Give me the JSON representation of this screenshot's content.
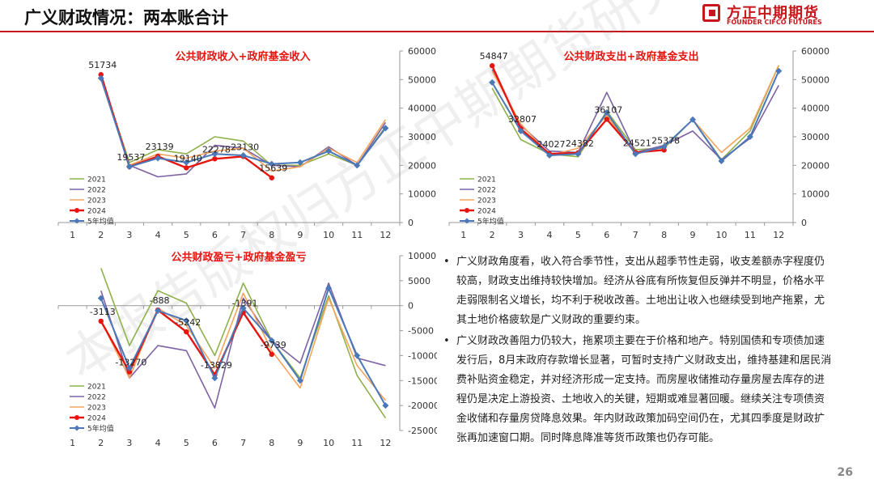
{
  "page": {
    "title": "广义财政情况：两本账合计",
    "page_number": "26",
    "watermark": "本报告版权归方正中期期货研究院所有"
  },
  "logo": {
    "cn": "方正中期期货",
    "en": "FOUNDER CIFCO FUTURES"
  },
  "colors": {
    "accent": "#c8161d",
    "s2021": "#8fb04a",
    "s2022": "#7d62a3",
    "s2023": "#f5a35a",
    "s2024": "#e8150f",
    "savg": "#4a78b8"
  },
  "chart_data": [
    {
      "type": "line",
      "title": "公共财政收入+政府基金收入",
      "x": [
        1,
        2,
        3,
        4,
        5,
        6,
        7,
        8,
        9,
        10,
        11,
        12
      ],
      "ylim": [
        0,
        60000
      ],
      "yticks": [
        0,
        10000,
        20000,
        30000,
        40000,
        50000,
        60000
      ],
      "series": [
        {
          "name": "2021",
          "values": [
            null,
            51000,
            21000,
            25500,
            24000,
            30000,
            28500,
            20000,
            20000,
            24000,
            20000,
            33500
          ]
        },
        {
          "name": "2022",
          "values": [
            null,
            50500,
            20000,
            16000,
            17000,
            27000,
            26000,
            20000,
            19500,
            26500,
            20000,
            35000
          ]
        },
        {
          "name": "2023",
          "values": [
            null,
            50000,
            20000,
            24000,
            22500,
            25000,
            26000,
            18000,
            19500,
            26000,
            21000,
            36000
          ]
        },
        {
          "name": "2024",
          "values": [
            null,
            51734,
            19537,
            23139,
            19140,
            22278,
            23130,
            15639,
            null,
            null,
            null,
            null
          ]
        },
        {
          "name": "5年均值",
          "values": [
            null,
            50500,
            19537,
            22500,
            21000,
            24000,
            23500,
            20500,
            21000,
            25000,
            20000,
            33000
          ]
        }
      ],
      "labels": [
        {
          "x": 2,
          "value": "51734"
        },
        {
          "x": 3,
          "value": "19537"
        },
        {
          "x": 4,
          "value": "23139"
        },
        {
          "x": 5,
          "value": "19140"
        },
        {
          "x": 6,
          "value": "22278"
        },
        {
          "x": 7,
          "value": "23130"
        },
        {
          "x": 8,
          "value": "15639"
        }
      ]
    },
    {
      "type": "line",
      "title": "公共财政支出+政府基金支出",
      "x": [
        1,
        2,
        3,
        4,
        5,
        6,
        7,
        8,
        9,
        10,
        11,
        12
      ],
      "ylim": [
        0,
        60000
      ],
      "yticks": [
        0,
        10000,
        20000,
        30000,
        40000,
        50000,
        60000
      ],
      "series": [
        {
          "name": "2021",
          "values": [
            null,
            47000,
            29000,
            24000,
            23000,
            39000,
            25500,
            26000,
            36000,
            22000,
            32000,
            55000
          ]
        },
        {
          "name": "2022",
          "values": [
            null,
            53500,
            34000,
            25000,
            24500,
            45500,
            24500,
            27000,
            32000,
            22000,
            29500,
            48000
          ]
        },
        {
          "name": "2023",
          "values": [
            null,
            53000,
            34500,
            23500,
            26000,
            37500,
            24000,
            26500,
            36000,
            24500,
            33000,
            55000
          ]
        },
        {
          "name": "2024",
          "values": [
            null,
            54847,
            32807,
            24027,
            24382,
            36107,
            24521,
            25378,
            null,
            null,
            null,
            null
          ]
        },
        {
          "name": "5年均值",
          "values": [
            null,
            49000,
            32000,
            23500,
            24000,
            38500,
            24000,
            26500,
            36000,
            21500,
            30000,
            53000
          ]
        }
      ],
      "labels": [
        {
          "x": 2,
          "value": "54847"
        },
        {
          "x": 3,
          "value": "32807"
        },
        {
          "x": 4,
          "value": "24027"
        },
        {
          "x": 5,
          "value": "24382"
        },
        {
          "x": 6,
          "value": "36107"
        },
        {
          "x": 7,
          "value": "24521"
        },
        {
          "x": 8,
          "value": "25378"
        }
      ]
    },
    {
      "type": "line",
      "title": "公共财政盈亏+政府基金盈亏",
      "x": [
        1,
        2,
        3,
        4,
        5,
        6,
        7,
        8,
        9,
        10,
        11,
        12
      ],
      "ylim": [
        -25000,
        10000
      ],
      "yticks": [
        -25000,
        -20000,
        -15000,
        -10000,
        -5000,
        0,
        5000,
        10000
      ],
      "series": [
        {
          "name": "2021",
          "values": [
            null,
            7500,
            -8000,
            3000,
            500,
            -10000,
            4500,
            -7000,
            -14500,
            2000,
            -14000,
            -22500
          ]
        },
        {
          "name": "2022",
          "values": [
            null,
            3000,
            -14500,
            -8000,
            -9000,
            -20500,
            1500,
            -7000,
            -11500,
            4500,
            -10500,
            -12000
          ]
        },
        {
          "name": "2023",
          "values": [
            null,
            -3000,
            -14500,
            -500,
            -4000,
            -12500,
            2500,
            -9000,
            -16500,
            1500,
            -12000,
            -19000
          ]
        },
        {
          "name": "2024",
          "values": [
            null,
            -3113,
            -13270,
            -888,
            -5242,
            -13829,
            -1391,
            -9739,
            null,
            null,
            null,
            null
          ]
        },
        {
          "name": "5年均值",
          "values": [
            null,
            1500,
            -12500,
            -1000,
            -3000,
            -14500,
            -500,
            -7000,
            -15000,
            3500,
            -10000,
            -20000
          ]
        }
      ],
      "labels": [
        {
          "x": 2,
          "value": "-3113"
        },
        {
          "x": 3,
          "value": "-13270"
        },
        {
          "x": 4,
          "value": "-888"
        },
        {
          "x": 5,
          "value": "-5242"
        },
        {
          "x": 6,
          "value": "-13829"
        },
        {
          "x": 7,
          "value": "-1391"
        },
        {
          "x": 8,
          "value": "-9739"
        }
      ]
    }
  ],
  "commentary": [
    "广义财政角度看，收入符合季节性，支出从超季节性走弱，收支差额赤字程度仍较高，财政支出维持较快增加。经济从谷底有所恢复但反弹并不明显，价格水平走弱限制名义增长，均不利于税收改善。土地出让收入也继续受到地产拖累，尤其土地价格疲软是广义财政的重要约束。",
    "广义财政改善阻力仍较大，拖累项主要在于价格和地产。特别国债和专项债加速发行后，8月末政府存款增长显著，可暂时支持广义财政支出，维持基建和居民消费补贴资金稳定，并对经济形成一定支持。而房屋收储推动存量房屋去库存的进程仍是决定上游投资、土地收入的关键，短期或难显著回暖。继续关注专项债资金收储和存量房贷降息效果。年内财政政策加码空间仍在，尤其四季度是财政扩张再加速窗口期。同时降息降准等货币政策也仍存可能。"
  ]
}
